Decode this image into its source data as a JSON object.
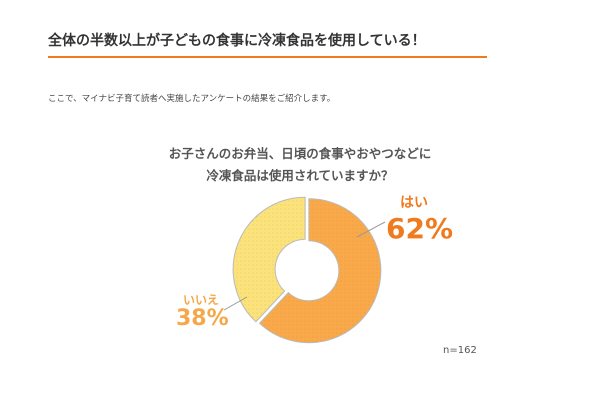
{
  "heading": "全体の半数以上が子どもの食事に冷凍食品を使用している！",
  "intro": "ここで、マイナビ子育て読者へ実施したアンケートの結果をご紹介します。",
  "chart_data": {
    "type": "pie",
    "title": [
      "お子さんのお弁当、日頃の食事やおやつなどに",
      "冷凍食品は使用されていますか？"
    ],
    "categories": [
      "はい",
      "いいえ"
    ],
    "values": [
      62,
      38
    ],
    "value_labels": [
      "62%",
      "38%"
    ],
    "colors": [
      "#f9a94a",
      "#fbe27a"
    ],
    "label_colors": [
      "#f07a1e",
      "#f5a84a"
    ],
    "note": "n=162"
  }
}
